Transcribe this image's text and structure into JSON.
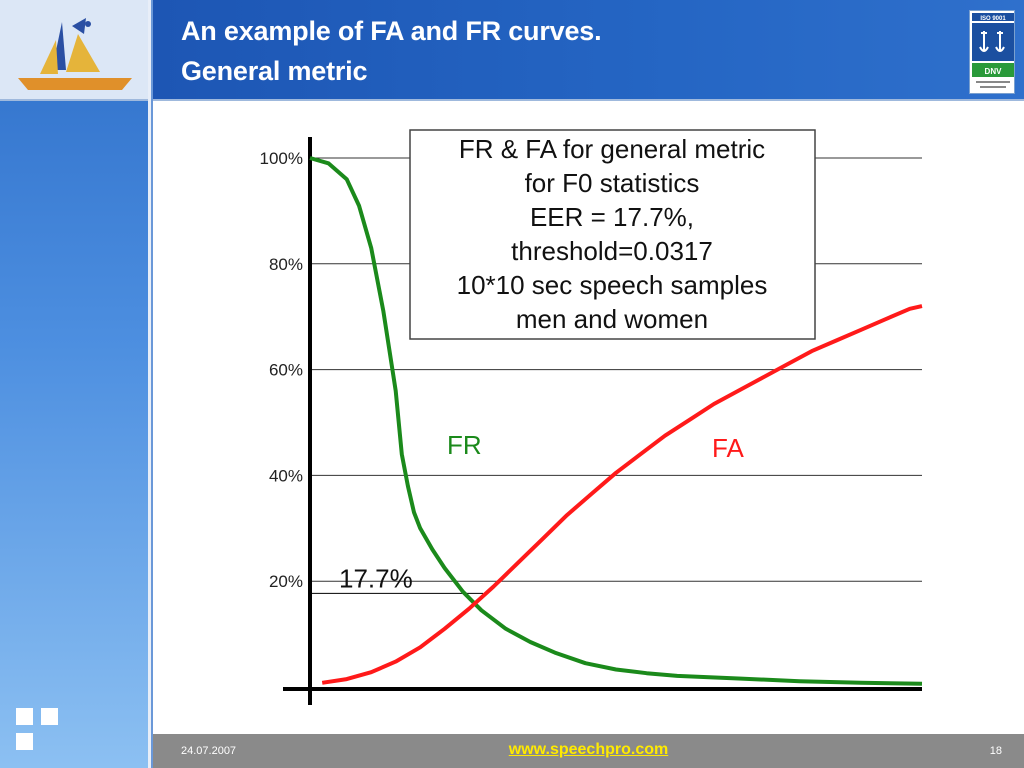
{
  "slide": {
    "title_line1": "An example of FA and FR curves.",
    "title_line2": "General metric",
    "date": "24.07.2007",
    "website": "www.speechpro.com",
    "page_number": "18"
  },
  "logo": {
    "icon": "stc-ship-logo",
    "badge_icon": "iso-9001-certified-badge",
    "badge_top_text": "ISO 9001",
    "badge_bottom_text": "DNV"
  },
  "colors": {
    "header": "#2566c4",
    "fr": "#1b8a1b",
    "fa": "#ff1a1a",
    "footer_url": "#ffea00"
  },
  "chart_data": {
    "type": "line",
    "y_tick_labels": [
      "100%",
      "80%",
      "60%",
      "40%",
      "20%"
    ],
    "y_ticks": [
      100,
      80,
      60,
      40,
      20
    ],
    "ylim": [
      0,
      100
    ],
    "xlim": [
      0,
      1
    ],
    "grid": true,
    "series": [
      {
        "name": "FR",
        "color": "#1b8a1b",
        "x": [
          0.0,
          0.03,
          0.06,
          0.08,
          0.1,
          0.12,
          0.14,
          0.15,
          0.16,
          0.17,
          0.18,
          0.2,
          0.22,
          0.25,
          0.28,
          0.32,
          0.36,
          0.4,
          0.45,
          0.5,
          0.55,
          0.6,
          0.7,
          0.8,
          0.9,
          1.0
        ],
        "values": [
          100,
          99,
          96,
          91,
          83,
          71,
          56,
          44,
          38,
          33,
          30,
          26,
          22.5,
          18,
          14.5,
          11,
          8.5,
          6.5,
          4.5,
          3.3,
          2.6,
          2.1,
          1.6,
          1.1,
          0.8,
          0.6
        ]
      },
      {
        "name": "FA",
        "color": "#ff1a1a",
        "x": [
          0.02,
          0.06,
          0.1,
          0.14,
          0.18,
          0.22,
          0.26,
          0.3,
          0.34,
          0.38,
          0.42,
          0.46,
          0.5,
          0.54,
          0.58,
          0.62,
          0.66,
          0.7,
          0.74,
          0.78,
          0.82,
          0.86,
          0.9,
          0.94,
          0.98,
          1.0
        ],
        "values": [
          0.8,
          1.5,
          2.8,
          4.8,
          7.5,
          11,
          14.8,
          19,
          23.5,
          28,
          32.5,
          36.5,
          40.5,
          44,
          47.5,
          50.5,
          53.5,
          56,
          58.5,
          61,
          63.5,
          65.5,
          67.5,
          69.5,
          71.5,
          72
        ]
      }
    ],
    "annotation": {
      "label": "17.7%",
      "value": 17.7
    },
    "legend_box": {
      "lines": [
        "FR & FA for general metric",
        "for F0 statistics",
        "EER = 17.7%,",
        "threshold=0.0317",
        "10*10 sec speech samples",
        "men and women"
      ]
    }
  }
}
